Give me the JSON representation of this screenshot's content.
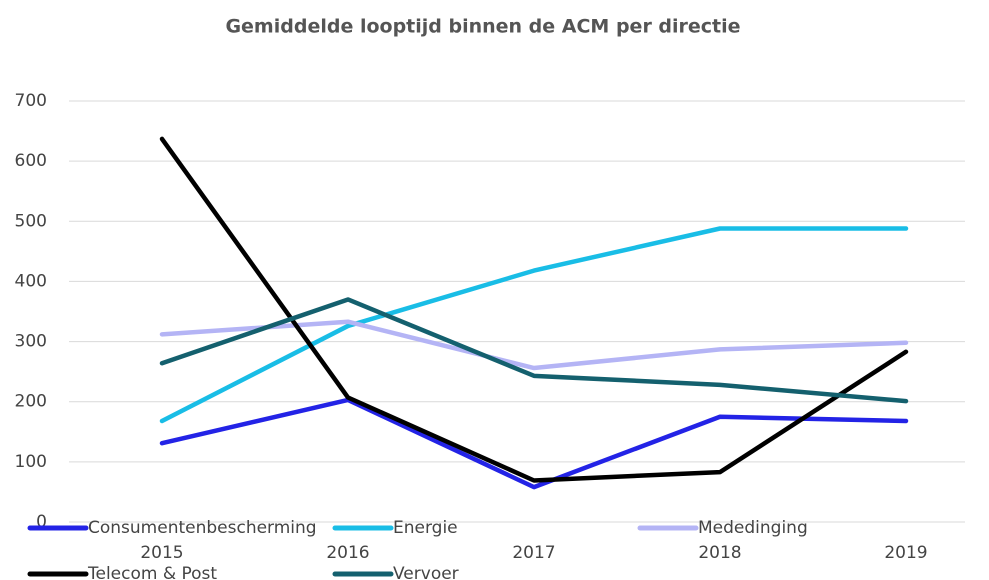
{
  "chart_data": {
    "type": "line",
    "title": "Gemiddelde looptijd binnen de ACM per directie",
    "categories": [
      "2015",
      "2016",
      "2017",
      "2018",
      "2019"
    ],
    "series": [
      {
        "name": "Consumentenbescherming",
        "color": "#2323e6",
        "values": [
          131,
          203,
          58,
          175,
          168
        ]
      },
      {
        "name": "Energie",
        "color": "#19bde6",
        "values": [
          168,
          326,
          418,
          488,
          488
        ]
      },
      {
        "name": "Mededinging",
        "color": "#b4b4f5",
        "values": [
          312,
          333,
          256,
          287,
          298
        ]
      },
      {
        "name": "Telecom & Post",
        "color": "#000000",
        "values": [
          637,
          207,
          69,
          83,
          283
        ]
      },
      {
        "name": "Vervoer",
        "color": "#14606e",
        "values": [
          264,
          370,
          243,
          228,
          201
        ]
      }
    ],
    "ylim": [
      0,
      700
    ],
    "yticks": [
      0,
      100,
      200,
      300,
      400,
      500,
      600,
      700
    ],
    "grid": true,
    "legend": "bottom"
  }
}
